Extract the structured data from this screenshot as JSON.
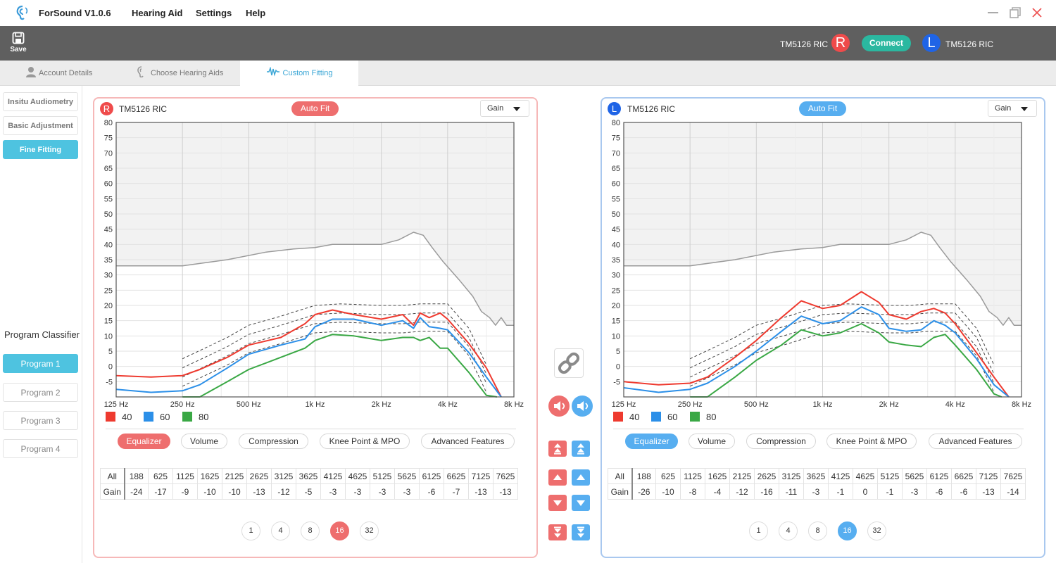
{
  "app": {
    "title": "ForSound V1.0.6",
    "menu": [
      "Hearing Aid",
      "Settings",
      "Help"
    ]
  },
  "toolbar": {
    "save_label": "Save",
    "right_device": "TM5126 RIC",
    "left_device": "TM5126 RIC",
    "right_badge": "R",
    "left_badge": "L",
    "connect_label": "Connect"
  },
  "tabs": [
    {
      "label": "Account Details",
      "icon": "person-icon"
    },
    {
      "label": "Choose Hearing Aids",
      "icon": "ear-icon"
    },
    {
      "label": "Custom Fitting",
      "icon": "waveform-icon",
      "active": true
    }
  ],
  "sidebar": {
    "steps": [
      {
        "label": "Insitu Audiometry"
      },
      {
        "label": "Basic Adjustment"
      },
      {
        "label": "Fine Fitting",
        "active": true
      }
    ],
    "classifier_title": "Program Classifier",
    "programs": [
      {
        "label": "Program 1",
        "active": true
      },
      {
        "label": "Program 2"
      },
      {
        "label": "Program 3"
      },
      {
        "label": "Program 4"
      }
    ]
  },
  "colors": {
    "right": "#ee6e6e",
    "left": "#57aef0",
    "s40": "#ee3a2f",
    "s60": "#2b8fe8",
    "s80": "#3aa845",
    "mpo": "#9a9a9a"
  },
  "function_tabs": [
    "Equalizer",
    "Volume",
    "Compression",
    "Knee Point & MPO",
    "Advanced Features"
  ],
  "channel_options": [
    "1",
    "4",
    "8",
    "16",
    "32"
  ],
  "panels": {
    "right": {
      "badge": "R",
      "device": "TM5126 RIC",
      "autofit_label": "Auto Fit",
      "gain_selector": "Gain",
      "active_channels": "16",
      "legend": [
        "40",
        "60",
        "80"
      ],
      "eq": {
        "all_label": "All",
        "row_label": "Gain",
        "freqs": [
          "188",
          "625",
          "1125",
          "1625",
          "2125",
          "2625",
          "3125",
          "3625",
          "4125",
          "4625",
          "5125",
          "5625",
          "6125",
          "6625",
          "7125",
          "7625"
        ],
        "gains": [
          "-24",
          "-17",
          "-9",
          "-10",
          "-10",
          "-13",
          "-12",
          "-5",
          "-3",
          "-3",
          "-3",
          "-3",
          "-6",
          "-7",
          "-13",
          "-13"
        ]
      }
    },
    "left": {
      "badge": "L",
      "device": "TM5126 RIC",
      "autofit_label": "Auto Fit",
      "gain_selector": "Gain",
      "active_channels": "16",
      "legend": [
        "40",
        "60",
        "80"
      ],
      "eq": {
        "all_label": "All",
        "row_label": "Gain",
        "freqs": [
          "188",
          "625",
          "1125",
          "1625",
          "2125",
          "2625",
          "3125",
          "3625",
          "4125",
          "4625",
          "5125",
          "5625",
          "6125",
          "6625",
          "7125",
          "7625"
        ],
        "gains": [
          "-26",
          "-10",
          "-8",
          "-4",
          "-12",
          "-16",
          "-11",
          "-3",
          "-1",
          "0",
          "-1",
          "-3",
          "-6",
          "-6",
          "-13",
          "-14"
        ]
      }
    }
  },
  "chart_data": [
    {
      "type": "line",
      "xscale": "log",
      "x_ticks": [
        "125 Hz",
        "250 Hz",
        "500 Hz",
        "1k Hz",
        "2k Hz",
        "4k Hz",
        "8k Hz"
      ],
      "x_tick_values": [
        125,
        250,
        500,
        1000,
        2000,
        4000,
        8000
      ],
      "y_ticks": [
        -5,
        0,
        5,
        10,
        15,
        20,
        25,
        30,
        35,
        40,
        45,
        50,
        55,
        60,
        65,
        70,
        75,
        80
      ],
      "ylim": [
        -10,
        80
      ],
      "grid": true,
      "series": [
        {
          "name": "40",
          "x": [
            125,
            180,
            250,
            300,
            400,
            500,
            700,
            900,
            1000,
            1200,
            1500,
            2000,
            2500,
            2800,
            3000,
            3300,
            3700,
            4000,
            5000,
            6000,
            7000
          ],
          "y": [
            -3,
            -3.5,
            -3,
            -1,
            3,
            7,
            9.5,
            14,
            17,
            18.5,
            17,
            15.5,
            17,
            13.5,
            17.5,
            16,
            17.5,
            15.5,
            7.5,
            -0.5,
            -12
          ]
        },
        {
          "name": "60",
          "x": [
            125,
            180,
            250,
            300,
            400,
            500,
            700,
            900,
            1000,
            1200,
            1500,
            2000,
            2500,
            2800,
            3000,
            3300,
            3700,
            4000,
            5000,
            6000,
            7000
          ],
          "y": [
            -7.5,
            -8.5,
            -8,
            -6,
            -0.5,
            4,
            7,
            9,
            13,
            15.5,
            15.5,
            13.5,
            15,
            12.5,
            16,
            13,
            12.5,
            12,
            4.5,
            -3.5,
            -13
          ]
        },
        {
          "name": "80",
          "x": [
            250,
            300,
            400,
            500,
            700,
            900,
            1000,
            1200,
            1500,
            2000,
            2500,
            2800,
            3000,
            3300,
            3700,
            4000,
            5000,
            6000,
            6700
          ],
          "y": [
            -12,
            -10,
            -5,
            -1,
            3,
            6,
            8.5,
            10.5,
            10,
            8.5,
            9.5,
            9.5,
            8.5,
            9.5,
            6,
            6,
            -2,
            -9.5,
            -13
          ]
        },
        {
          "name": "MPO",
          "x": [
            125,
            250,
            400,
            600,
            800,
            1000,
            1200,
            1600,
            2000,
            2400,
            2800,
            3100,
            3400,
            3800,
            4500,
            5200,
            5700,
            6200,
            6600,
            7000,
            7400,
            8000
          ],
          "y": [
            33,
            33,
            35,
            37.5,
            38.5,
            39,
            40,
            40,
            40,
            41.5,
            44,
            43,
            39,
            34.5,
            28.5,
            23,
            18,
            16,
            13.5,
            16,
            13.5,
            13.5
          ]
        }
      ]
    },
    {
      "type": "line",
      "xscale": "log",
      "x_ticks": [
        "125 Hz",
        "250 Hz",
        "500 Hz",
        "1k Hz",
        "2k Hz",
        "4k Hz",
        "8k Hz"
      ],
      "x_tick_values": [
        125,
        250,
        500,
        1000,
        2000,
        4000,
        8000
      ],
      "y_ticks": [
        -5,
        0,
        5,
        10,
        15,
        20,
        25,
        30,
        35,
        40,
        45,
        50,
        55,
        60,
        65,
        70,
        75,
        80
      ],
      "ylim": [
        -10,
        80
      ],
      "grid": true,
      "series": [
        {
          "name": "40",
          "x": [
            125,
            180,
            250,
            300,
            400,
            500,
            650,
            800,
            1000,
            1200,
            1500,
            1800,
            2000,
            2400,
            2800,
            3200,
            3600,
            4000,
            5000,
            6000,
            7000
          ],
          "y": [
            -5,
            -6,
            -5.5,
            -3.5,
            3,
            8.5,
            16,
            21.5,
            19,
            20,
            24.5,
            21,
            17,
            15.5,
            18,
            19,
            17.5,
            14,
            4.5,
            -3.5,
            -13
          ]
        },
        {
          "name": "60",
          "x": [
            125,
            180,
            250,
            300,
            400,
            500,
            650,
            800,
            1000,
            1200,
            1500,
            1800,
            2000,
            2400,
            2800,
            3200,
            3600,
            4000,
            5000,
            6000,
            7000
          ],
          "y": [
            -7,
            -8.5,
            -7.5,
            -5.5,
            0,
            5,
            11.5,
            16.5,
            14,
            15,
            19.5,
            17,
            12.5,
            11.5,
            12,
            15,
            13.5,
            11,
            2.5,
            -6,
            -13.5
          ]
        },
        {
          "name": "80",
          "x": [
            250,
            300,
            400,
            500,
            650,
            800,
            1000,
            1200,
            1500,
            1800,
            2000,
            2400,
            2800,
            3200,
            3600,
            4000,
            5000,
            6000,
            6500
          ],
          "y": [
            -12,
            -10,
            -3.5,
            2,
            7,
            12,
            10,
            11,
            14,
            11,
            8,
            7,
            6.5,
            9.5,
            10.5,
            7,
            -1,
            -9,
            -13
          ]
        },
        {
          "name": "MPO",
          "x": [
            125,
            250,
            400,
            600,
            800,
            1000,
            1200,
            1600,
            2000,
            2400,
            2800,
            3100,
            3400,
            3800,
            4500,
            5200,
            5700,
            6200,
            6600,
            7000,
            7400,
            8000
          ],
          "y": [
            33,
            33,
            35,
            37.5,
            38.5,
            39,
            40,
            40,
            40,
            41.5,
            44,
            43,
            39,
            34.5,
            28.5,
            23,
            18,
            16,
            13.5,
            16,
            13.5,
            13.5
          ]
        }
      ]
    }
  ]
}
